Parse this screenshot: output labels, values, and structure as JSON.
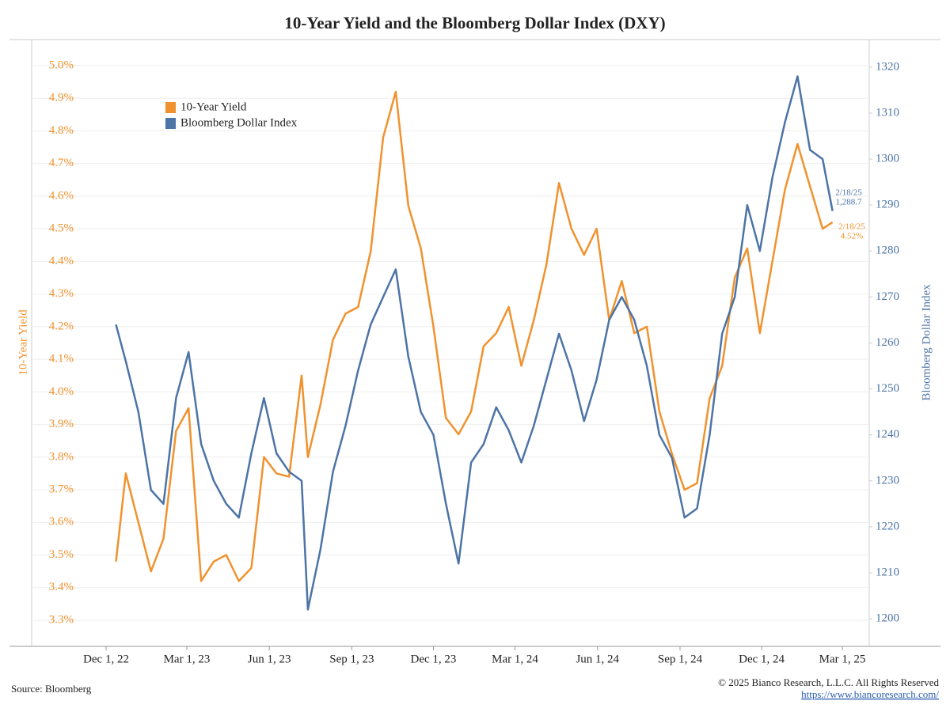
{
  "chart_data": {
    "type": "line",
    "title": "10-Year Yield and the Bloomberg Dollar Index (DXY)",
    "y_label": "10-Year Yield",
    "y2_label": "Bloomberg Dollar Index",
    "source": "Source: Bloomberg",
    "copyright": "© 2025 Bianco Research, L.L.C. All Rights Reserved",
    "url": "https://www.biancoresearch.com/",
    "annotations": [
      {
        "lines": [
          "2/18/25",
          "1,288.7"
        ],
        "color": "#4c74a6"
      },
      {
        "lines": [
          "2/18/25",
          "4.52%"
        ],
        "color": "#f0922e"
      }
    ],
    "x": [
      "2022-12-12",
      "2022-12-23",
      "2023-01-06",
      "2023-01-20",
      "2023-02-03",
      "2023-02-17",
      "2023-03-03",
      "2023-03-17",
      "2023-03-31",
      "2023-04-14",
      "2023-04-28",
      "2023-05-12",
      "2023-05-26",
      "2023-06-09",
      "2023-06-23",
      "2023-07-07",
      "2023-07-14",
      "2023-07-28",
      "2023-08-11",
      "2023-08-25",
      "2023-09-08",
      "2023-09-22",
      "2023-10-06",
      "2023-10-20",
      "2023-11-03",
      "2023-11-17",
      "2023-12-01",
      "2023-12-15",
      "2023-12-29",
      "2024-01-12",
      "2024-01-26",
      "2024-02-09",
      "2024-02-23",
      "2024-03-08",
      "2024-03-22",
      "2024-04-05",
      "2024-04-19",
      "2024-05-03",
      "2024-05-17",
      "2024-05-31",
      "2024-06-14",
      "2024-06-28",
      "2024-07-12",
      "2024-07-26",
      "2024-08-09",
      "2024-08-23",
      "2024-09-06",
      "2024-09-20",
      "2024-10-04",
      "2024-10-18",
      "2024-11-01",
      "2024-11-15",
      "2024-11-29",
      "2024-12-13",
      "2024-12-27",
      "2025-01-10",
      "2025-01-24",
      "2025-02-07",
      "2025-02-18"
    ],
    "series": [
      {
        "name": "10-Year Yield",
        "color": "#f0922e",
        "values": [
          3.48,
          3.75,
          3.6,
          3.45,
          3.55,
          3.88,
          3.95,
          3.42,
          3.48,
          3.5,
          3.42,
          3.46,
          3.8,
          3.75,
          3.74,
          4.05,
          3.8,
          3.96,
          4.16,
          4.24,
          4.26,
          4.43,
          4.78,
          4.92,
          4.57,
          4.44,
          4.2,
          3.92,
          3.87,
          3.94,
          4.14,
          4.18,
          4.26,
          4.08,
          4.22,
          4.39,
          4.64,
          4.5,
          4.42,
          4.5,
          4.22,
          4.34,
          4.18,
          4.2,
          3.94,
          3.81,
          3.7,
          3.72,
          3.98,
          4.08,
          4.35,
          4.44,
          4.18,
          4.4,
          4.62,
          4.76,
          4.63,
          4.5,
          4.52
        ]
      },
      {
        "name": "Bloomberg Dollar Index",
        "color": "#4c74a6",
        "axis": "y2",
        "values": [
          1264,
          1256,
          1245,
          1228,
          1225,
          1248,
          1258,
          1238,
          1230,
          1225,
          1222,
          1236,
          1248,
          1236,
          1232,
          1230,
          1202,
          1215,
          1232,
          1242,
          1254,
          1264,
          1270,
          1276,
          1257,
          1245,
          1240,
          1225,
          1212,
          1234,
          1238,
          1246,
          1241,
          1234,
          1242,
          1252,
          1262,
          1254,
          1243,
          1252,
          1265,
          1270,
          1265,
          1255,
          1240,
          1235,
          1222,
          1224,
          1240,
          1262,
          1270,
          1290,
          1280,
          1296,
          1308,
          1318,
          1302,
          1300,
          1288.7
        ]
      }
    ],
    "xlim": [
      "2022-09-09",
      "2025-03-31"
    ],
    "xticks": [
      {
        "value": "2022-12-01",
        "label": "Dec 1, 22"
      },
      {
        "value": "2023-03-01",
        "label": "Mar 1, 23"
      },
      {
        "value": "2023-06-01",
        "label": "Jun 1, 23"
      },
      {
        "value": "2023-09-01",
        "label": "Sep 1, 23"
      },
      {
        "value": "2023-12-01",
        "label": "Dec 1, 23"
      },
      {
        "value": "2024-03-01",
        "label": "Mar 1, 24"
      },
      {
        "value": "2024-06-01",
        "label": "Jun 1, 24"
      },
      {
        "value": "2024-09-01",
        "label": "Sep 1, 24"
      },
      {
        "value": "2024-12-01",
        "label": "Dec 1, 24"
      },
      {
        "value": "2025-03-01",
        "label": "Mar 1, 25"
      }
    ],
    "ylim": [
      3.22,
      5.08
    ],
    "yticks": [
      {
        "value": 3.3,
        "label": "3.3%"
      },
      {
        "value": 3.4,
        "label": "3.4%"
      },
      {
        "value": 3.5,
        "label": "3.5%"
      },
      {
        "value": 3.6,
        "label": "3.6%"
      },
      {
        "value": 3.7,
        "label": "3.7%"
      },
      {
        "value": 3.8,
        "label": "3.8%"
      },
      {
        "value": 3.9,
        "label": "3.9%"
      },
      {
        "value": 4.0,
        "label": "4.0%"
      },
      {
        "value": 4.1,
        "label": "4.1%"
      },
      {
        "value": 4.2,
        "label": "4.2%"
      },
      {
        "value": 4.3,
        "label": "4.3%"
      },
      {
        "value": 4.4,
        "label": "4.4%"
      },
      {
        "value": 4.5,
        "label": "4.5%"
      },
      {
        "value": 4.6,
        "label": "4.6%"
      },
      {
        "value": 4.7,
        "label": "4.7%"
      },
      {
        "value": 4.8,
        "label": "4.8%"
      },
      {
        "value": 4.9,
        "label": "4.9%"
      },
      {
        "value": 5.0,
        "label": "5.0%"
      }
    ],
    "y2lim": [
      1194,
      1326
    ],
    "y2ticks": [
      1200,
      1210,
      1220,
      1230,
      1240,
      1250,
      1260,
      1270,
      1280,
      1290,
      1300,
      1310,
      1320
    ],
    "grid": true
  }
}
